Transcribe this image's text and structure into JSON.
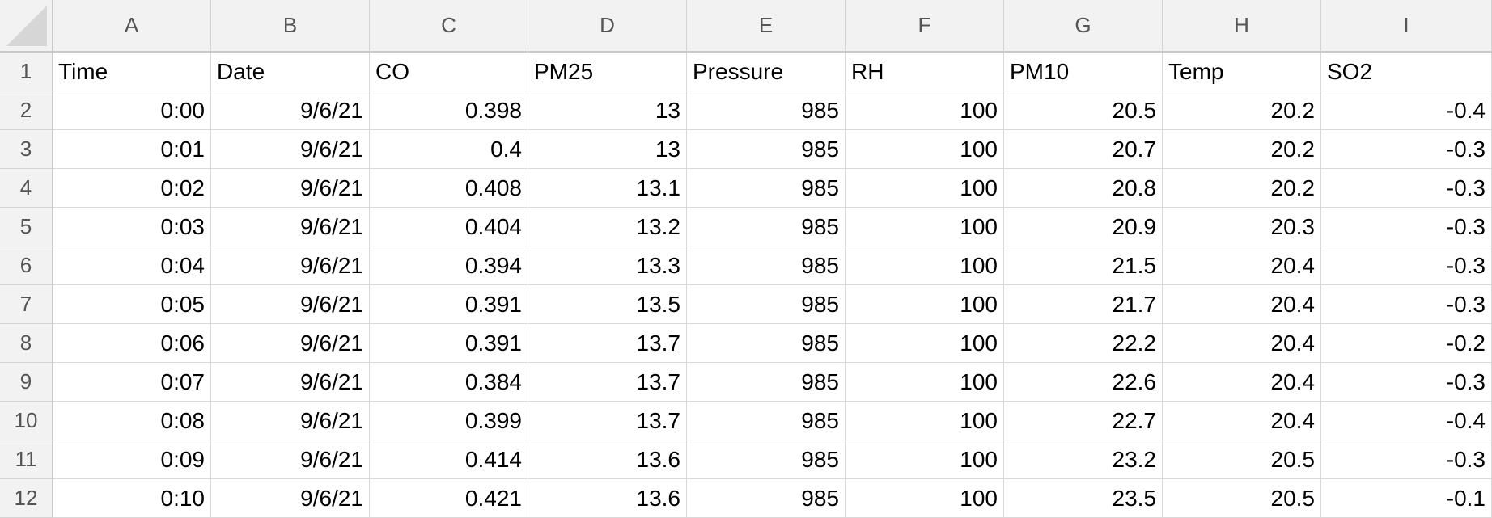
{
  "columns": [
    "A",
    "B",
    "C",
    "D",
    "E",
    "F",
    "G",
    "H",
    "I"
  ],
  "rows": [
    {
      "num": "1",
      "cells": [
        "Time",
        "Date",
        "CO",
        "PM25",
        "Pressure",
        "RH",
        "PM10",
        "Temp",
        "SO2"
      ]
    },
    {
      "num": "2",
      "cells": [
        "0:00",
        "9/6/21",
        "0.398",
        "13",
        "985",
        "100",
        "20.5",
        "20.2",
        "-0.4"
      ]
    },
    {
      "num": "3",
      "cells": [
        "0:01",
        "9/6/21",
        "0.4",
        "13",
        "985",
        "100",
        "20.7",
        "20.2",
        "-0.3"
      ]
    },
    {
      "num": "4",
      "cells": [
        "0:02",
        "9/6/21",
        "0.408",
        "13.1",
        "985",
        "100",
        "20.8",
        "20.2",
        "-0.3"
      ]
    },
    {
      "num": "5",
      "cells": [
        "0:03",
        "9/6/21",
        "0.404",
        "13.2",
        "985",
        "100",
        "20.9",
        "20.3",
        "-0.3"
      ]
    },
    {
      "num": "6",
      "cells": [
        "0:04",
        "9/6/21",
        "0.394",
        "13.3",
        "985",
        "100",
        "21.5",
        "20.4",
        "-0.3"
      ]
    },
    {
      "num": "7",
      "cells": [
        "0:05",
        "9/6/21",
        "0.391",
        "13.5",
        "985",
        "100",
        "21.7",
        "20.4",
        "-0.3"
      ]
    },
    {
      "num": "8",
      "cells": [
        "0:06",
        "9/6/21",
        "0.391",
        "13.7",
        "985",
        "100",
        "22.2",
        "20.4",
        "-0.2"
      ]
    },
    {
      "num": "9",
      "cells": [
        "0:07",
        "9/6/21",
        "0.384",
        "13.7",
        "985",
        "100",
        "22.6",
        "20.4",
        "-0.3"
      ]
    },
    {
      "num": "10",
      "cells": [
        "0:08",
        "9/6/21",
        "0.399",
        "13.7",
        "985",
        "100",
        "22.7",
        "20.4",
        "-0.4"
      ]
    },
    {
      "num": "11",
      "cells": [
        "0:09",
        "9/6/21",
        "0.414",
        "13.6",
        "985",
        "100",
        "23.2",
        "20.5",
        "-0.3"
      ]
    },
    {
      "num": "12",
      "cells": [
        "0:10",
        "9/6/21",
        "0.421",
        "13.6",
        "985",
        "100",
        "23.5",
        "20.5",
        "-0.1"
      ]
    }
  ]
}
